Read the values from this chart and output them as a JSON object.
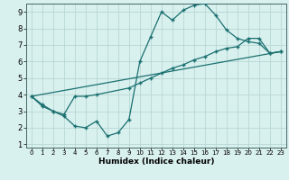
{
  "title": "",
  "xlabel": "Humidex (Indice chaleur)",
  "ylabel": "",
  "bg_color": "#d8f0ee",
  "grid_color": "#b8d8d4",
  "line_color": "#1a7070",
  "xlim": [
    -0.5,
    23.5
  ],
  "ylim": [
    0.8,
    9.5
  ],
  "xticks": [
    0,
    1,
    2,
    3,
    4,
    5,
    6,
    7,
    8,
    9,
    10,
    11,
    12,
    13,
    14,
    15,
    16,
    17,
    18,
    19,
    20,
    21,
    22,
    23
  ],
  "yticks": [
    1,
    2,
    3,
    4,
    5,
    6,
    7,
    8,
    9
  ],
  "series1_x": [
    0,
    1,
    2,
    3,
    4,
    5,
    6,
    7,
    8,
    9,
    10,
    11,
    12,
    13,
    14,
    15,
    16,
    17,
    18,
    19,
    20,
    21,
    22,
    23
  ],
  "series1_y": [
    3.9,
    3.3,
    3.0,
    2.7,
    2.1,
    2.0,
    2.4,
    1.5,
    1.7,
    2.5,
    6.0,
    7.5,
    9.0,
    8.5,
    9.1,
    9.4,
    9.5,
    8.8,
    7.9,
    7.4,
    7.2,
    7.1,
    6.5,
    6.6
  ],
  "series2_x": [
    0,
    1,
    2,
    3,
    4,
    5,
    6,
    9,
    10,
    11,
    12,
    13,
    14,
    15,
    16,
    17,
    18,
    19,
    20,
    21,
    22,
    23
  ],
  "series2_y": [
    3.9,
    3.4,
    3.0,
    2.8,
    3.9,
    3.9,
    4.0,
    4.4,
    4.7,
    5.0,
    5.3,
    5.6,
    5.8,
    6.1,
    6.3,
    6.6,
    6.8,
    6.9,
    7.4,
    7.4,
    6.5,
    6.6
  ],
  "series3_x": [
    0,
    23
  ],
  "series3_y": [
    3.9,
    6.6
  ],
  "marker_size": 2.5,
  "linewidth": 0.9,
  "xlabel_fontsize": 6.5,
  "tick_fontsize_x": 5,
  "tick_fontsize_y": 6
}
